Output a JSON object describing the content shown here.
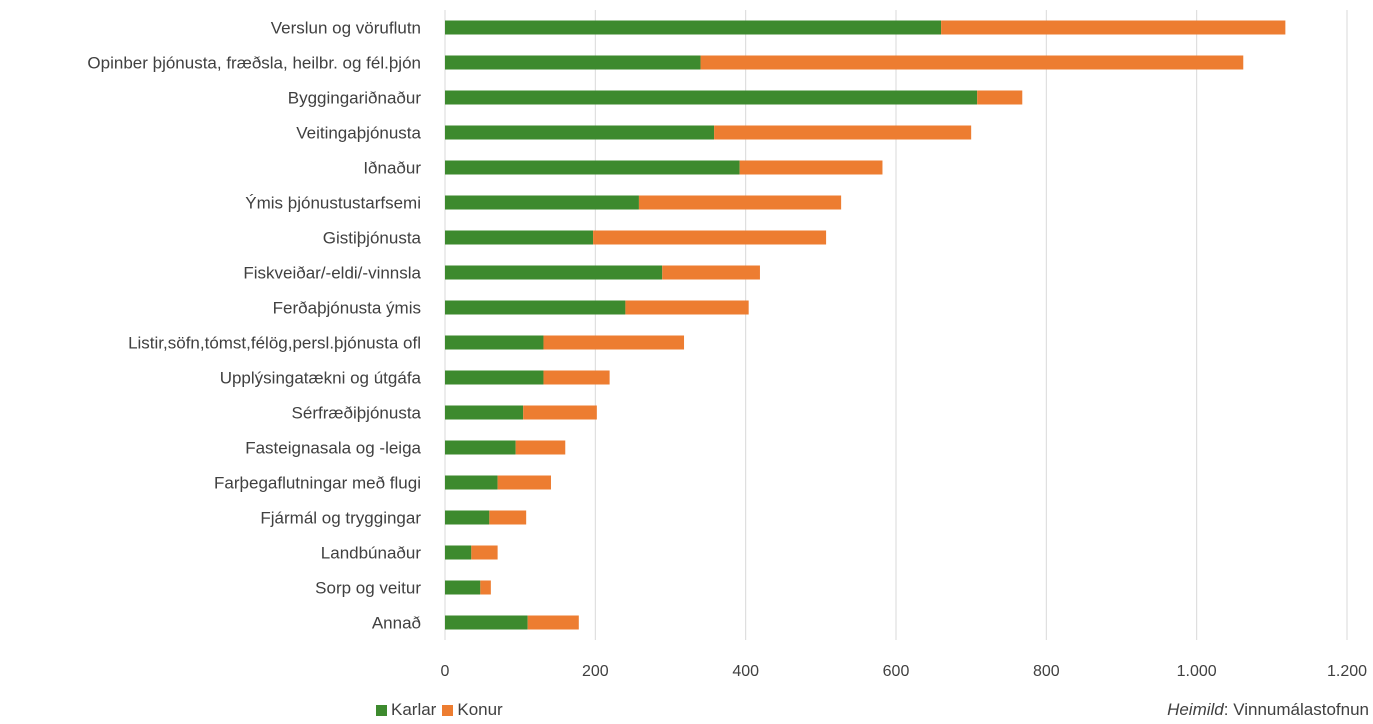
{
  "colors": {
    "karlar": "#3d8a2e",
    "konur": "#ed7d31",
    "grid": "#d9d9d9"
  },
  "legend": {
    "karlar": "Karlar",
    "konur": "Konur"
  },
  "source": {
    "prefix": "Heimild",
    "sep": ": ",
    "name": "Vinnumálastofnun"
  },
  "chart_data": {
    "type": "bar",
    "orientation": "horizontal",
    "stacked": true,
    "categories": [
      "Verslun og vöruflutn",
      "Opinber þjónusta, fræðsla, heilbr. og fél.þjón",
      "Byggingariðnaður",
      "Veitingaþjónusta",
      "Iðnaður",
      "Ýmis þjónustustarfsemi",
      "Gistiþjónusta",
      "Fiskveiðar/-eldi/-vinnsla",
      "Ferðaþjónusta ýmis",
      "Listir,söfn,tómst,félög,persl.þjónusta ofl",
      "Upplýsingatækni og útgáfa",
      "Sérfræðiþjónusta",
      "Fasteignasala og -leiga",
      "Farþegaflutningar með flugi",
      "Fjármál og tryggingar",
      "Landbúnaður",
      "Sorp og veitur",
      "Annað"
    ],
    "series": [
      {
        "name": "Karlar",
        "values": [
          660,
          340,
          708,
          358,
          392,
          258,
          197,
          289,
          240,
          131,
          131,
          104,
          94,
          70,
          59,
          35,
          47,
          110
        ]
      },
      {
        "name": "Konur",
        "values": [
          458,
          722,
          60,
          342,
          190,
          269,
          310,
          130,
          164,
          187,
          88,
          98,
          66,
          71,
          49,
          35,
          14,
          68
        ]
      }
    ],
    "xlim": [
      0,
      1200
    ],
    "xticks": [
      0,
      200,
      400,
      600,
      800,
      1000,
      1200
    ],
    "xtick_labels": [
      "0",
      "200",
      "400",
      "600",
      "800",
      "1.000",
      "1.200"
    ],
    "grid": true,
    "legend_position": "bottom"
  }
}
